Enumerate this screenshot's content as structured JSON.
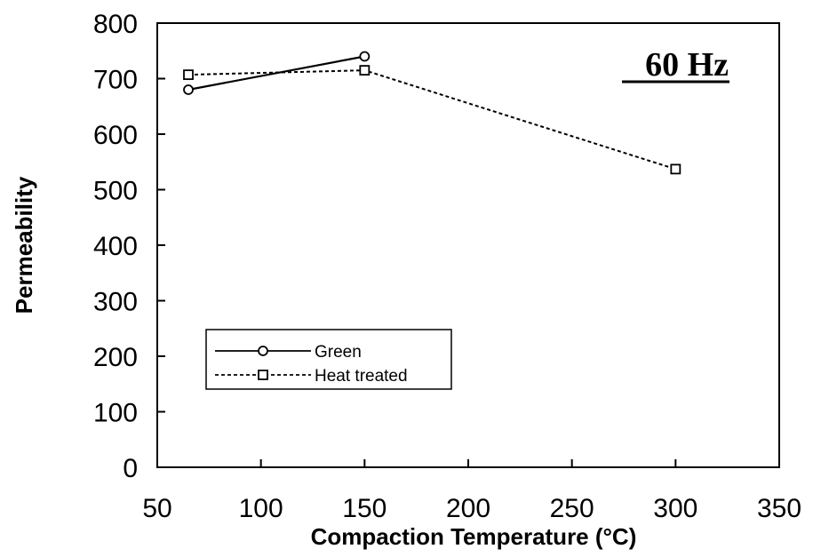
{
  "chart_data": {
    "type": "line",
    "title": "",
    "annotation": "60 Hz",
    "xlabel": "Compaction  Temperature  (°C)",
    "ylabel": "Permeability",
    "xlim": [
      50,
      350
    ],
    "ylim": [
      0,
      800
    ],
    "xticks": [
      50,
      100,
      150,
      200,
      250,
      300,
      350
    ],
    "yticks": [
      0,
      100,
      200,
      300,
      400,
      500,
      600,
      700,
      800
    ],
    "grid": false,
    "legend_position": "lower-left",
    "series": [
      {
        "name": "Green",
        "style": "solid",
        "marker": "circle",
        "color": "#000000",
        "x": [
          65,
          150
        ],
        "y": [
          680,
          740
        ]
      },
      {
        "name": "Heat  treated",
        "style": "dashed",
        "marker": "square",
        "color": "#000000",
        "x": [
          65,
          150,
          300
        ],
        "y": [
          707,
          715,
          537
        ]
      }
    ]
  }
}
